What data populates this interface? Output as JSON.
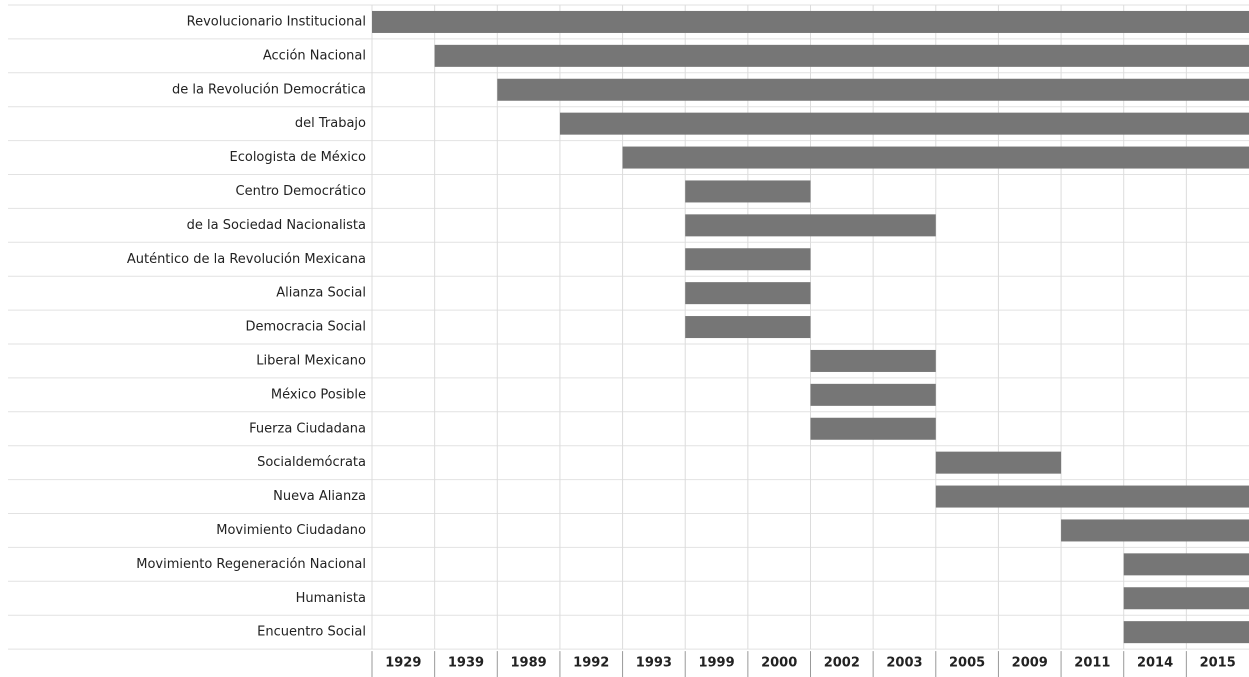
{
  "chart_data": {
    "type": "gantt",
    "categories": [
      "1929",
      "1939",
      "1989",
      "1992",
      "1993",
      "1999",
      "2000",
      "2002",
      "2003",
      "2005",
      "2009",
      "2011",
      "2014",
      "2015"
    ],
    "color": "#767676",
    "tasks": [
      {
        "name": "Revolucionario Institucional",
        "start": "1929",
        "end": "2015"
      },
      {
        "name": "Acción Nacional",
        "start": "1939",
        "end": "2015"
      },
      {
        "name": "de la Revolución Democrática",
        "start": "1989",
        "end": "2015"
      },
      {
        "name": "del Trabajo",
        "start": "1992",
        "end": "2015"
      },
      {
        "name": "Ecologista de México",
        "start": "1993",
        "end": "2015"
      },
      {
        "name": "Centro Democrático",
        "start": "1999",
        "end": "2000"
      },
      {
        "name": "de la Sociedad Nacionalista",
        "start": "1999",
        "end": "2003"
      },
      {
        "name": "Auténtico de la Revolución Mexicana",
        "start": "1999",
        "end": "2000"
      },
      {
        "name": "Alianza Social",
        "start": "1999",
        "end": "2000"
      },
      {
        "name": "Democracia Social",
        "start": "1999",
        "end": "2000"
      },
      {
        "name": "Liberal Mexicano",
        "start": "2002",
        "end": "2003"
      },
      {
        "name": "México Posible",
        "start": "2002",
        "end": "2003"
      },
      {
        "name": "Fuerza Ciudadana",
        "start": "2002",
        "end": "2003"
      },
      {
        "name": "Socialdemócrata",
        "start": "2005",
        "end": "2009"
      },
      {
        "name": "Nueva Alianza",
        "start": "2005",
        "end": "2015"
      },
      {
        "name": "Movimiento Ciudadano",
        "start": "2011",
        "end": "2015"
      },
      {
        "name": "Movimiento Regeneración Nacional",
        "start": "2014",
        "end": "2015"
      },
      {
        "name": "Humanista",
        "start": "2014",
        "end": "2015"
      },
      {
        "name": "Encuentro Social",
        "start": "2014",
        "end": "2015"
      }
    ]
  }
}
